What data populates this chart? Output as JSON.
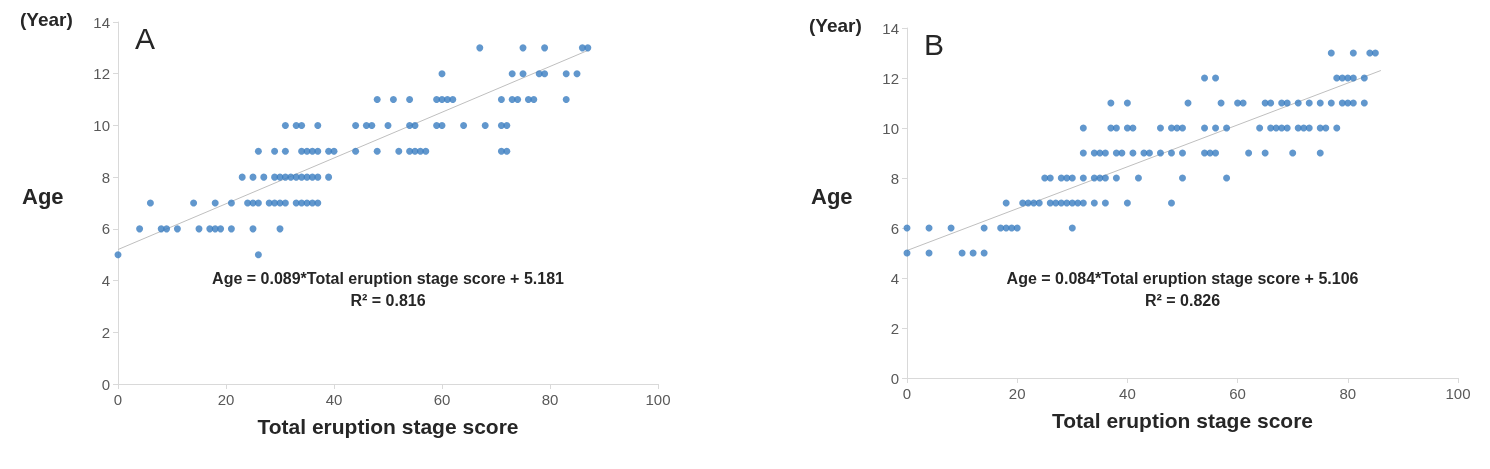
{
  "chart_data": [
    {
      "type": "scatter",
      "title": "A",
      "xlabel": "Total eruption stage score",
      "ylabel": "Age",
      "annotations": [
        "(Year)",
        "Age = 0.089*Total eruption stage score + 5.181",
        "R² = 0.816"
      ],
      "xlim": [
        0,
        100
      ],
      "xticks": [
        0,
        20,
        40,
        60,
        80,
        100
      ],
      "ylim": [
        0,
        14
      ],
      "yticks": [
        0,
        2,
        4,
        6,
        8,
        10,
        12,
        14
      ],
      "grid": false,
      "series": [
        {
          "marker": "circle",
          "color": "#3a7dc0",
          "x": [
            0,
            26,
            4,
            8,
            9,
            11,
            15,
            17,
            18,
            19,
            21,
            25,
            30,
            6,
            14,
            18,
            21,
            24,
            25,
            26,
            28,
            29,
            30,
            31,
            33,
            34,
            35,
            36,
            37,
            23,
            25,
            27,
            29,
            30,
            31,
            32,
            33,
            34,
            35,
            36,
            37,
            39,
            26,
            29,
            31,
            34,
            35,
            36,
            37,
            39,
            40,
            44,
            48,
            52,
            54,
            55,
            56,
            57,
            71,
            72,
            31,
            33,
            34,
            37,
            44,
            46,
            47,
            50,
            54,
            55,
            59,
            60,
            64,
            68,
            71,
            72,
            48,
            51,
            54,
            59,
            60,
            61,
            62,
            71,
            73,
            74,
            76,
            77,
            83,
            60,
            73,
            75,
            78,
            79,
            83,
            85,
            67,
            75,
            79,
            86,
            87
          ],
          "values": [
            5,
            5,
            6,
            6,
            6,
            6,
            6,
            6,
            6,
            6,
            6,
            6,
            6,
            7,
            7,
            7,
            7,
            7,
            7,
            7,
            7,
            7,
            7,
            7,
            7,
            7,
            7,
            7,
            7,
            8,
            8,
            8,
            8,
            8,
            8,
            8,
            8,
            8,
            8,
            8,
            8,
            8,
            9,
            9,
            9,
            9,
            9,
            9,
            9,
            9,
            9,
            9,
            9,
            9,
            9,
            9,
            9,
            9,
            9,
            9,
            10,
            10,
            10,
            10,
            10,
            10,
            10,
            10,
            10,
            10,
            10,
            10,
            10,
            10,
            10,
            10,
            11,
            11,
            11,
            11,
            11,
            11,
            11,
            11,
            11,
            11,
            11,
            11,
            11,
            12,
            12,
            12,
            12,
            12,
            12,
            12,
            13,
            13,
            13,
            13,
            13
          ]
        },
        {
          "type": "line",
          "marker": "none",
          "color": "#bfbfbf",
          "x": [
            0,
            87
          ],
          "values": [
            5.2,
            12.9
          ]
        }
      ]
    },
    {
      "type": "scatter",
      "title": "B",
      "xlabel": "Total eruption stage score",
      "ylabel": "Age",
      "annotations": [
        "(Year)",
        "Age = 0.084*Total eruption stage score + 5.106",
        "R² = 0.826"
      ],
      "xlim": [
        0,
        100
      ],
      "xticks": [
        0,
        20,
        40,
        60,
        80,
        100
      ],
      "ylim": [
        0,
        14
      ],
      "yticks": [
        0,
        2,
        4,
        6,
        8,
        10,
        12,
        14
      ],
      "grid": false,
      "series": [
        {
          "marker": "circle",
          "color": "#3a7dc0",
          "x": [
            0,
            4,
            10,
            12,
            14,
            0,
            4,
            8,
            14,
            17,
            18,
            19,
            20,
            30,
            18,
            21,
            22,
            23,
            24,
            26,
            27,
            28,
            29,
            30,
            31,
            32,
            34,
            36,
            40,
            48,
            25,
            26,
            28,
            29,
            30,
            32,
            34,
            35,
            36,
            38,
            42,
            50,
            58,
            32,
            34,
            35,
            36,
            38,
            39,
            41,
            43,
            44,
            46,
            48,
            50,
            54,
            55,
            56,
            62,
            65,
            70,
            75,
            32,
            37,
            38,
            40,
            41,
            46,
            48,
            49,
            50,
            54,
            56,
            58,
            64,
            66,
            67,
            68,
            69,
            71,
            72,
            73,
            75,
            76,
            78,
            37,
            40,
            51,
            57,
            60,
            61,
            65,
            66,
            68,
            69,
            71,
            73,
            75,
            77,
            79,
            80,
            81,
            83,
            54,
            56,
            78,
            79,
            80,
            81,
            83,
            77,
            81,
            84,
            85
          ],
          "values": [
            5,
            5,
            5,
            5,
            5,
            6,
            6,
            6,
            6,
            6,
            6,
            6,
            6,
            6,
            7,
            7,
            7,
            7,
            7,
            7,
            7,
            7,
            7,
            7,
            7,
            7,
            7,
            7,
            7,
            7,
            8,
            8,
            8,
            8,
            8,
            8,
            8,
            8,
            8,
            8,
            8,
            8,
            8,
            9,
            9,
            9,
            9,
            9,
            9,
            9,
            9,
            9,
            9,
            9,
            9,
            9,
            9,
            9,
            9,
            9,
            9,
            9,
            10,
            10,
            10,
            10,
            10,
            10,
            10,
            10,
            10,
            10,
            10,
            10,
            10,
            10,
            10,
            10,
            10,
            10,
            10,
            10,
            10,
            10,
            10,
            11,
            11,
            11,
            11,
            11,
            11,
            11,
            11,
            11,
            11,
            11,
            11,
            11,
            11,
            11,
            11,
            11,
            11,
            12,
            12,
            12,
            12,
            12,
            12,
            12,
            13,
            13,
            13,
            13
          ]
        },
        {
          "type": "line",
          "marker": "none",
          "color": "#bfbfbf",
          "x": [
            0,
            86
          ],
          "values": [
            5.1,
            12.3
          ]
        }
      ]
    }
  ]
}
